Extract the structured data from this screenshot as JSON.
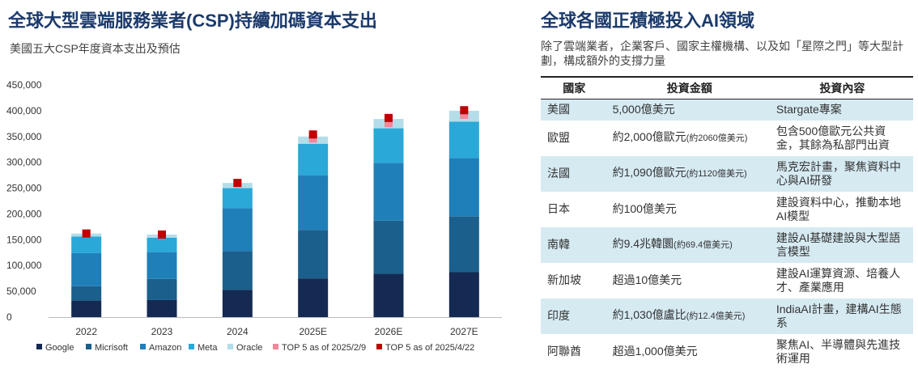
{
  "left": {
    "title": "全球大型雲端服務業者(CSP)持續加碼資本支出",
    "subtitle": "美國五大CSP年度資本支出及預估"
  },
  "right": {
    "title": "全球各國正積極投入AI領域",
    "description": "除了雲端業者，企業客戶、國家主權機構、以及如「星際之門」等大型計劃，構成額外的支撐力量",
    "headers": [
      "國家",
      "投資金額",
      "投資內容"
    ],
    "rows": [
      {
        "country": "美國",
        "amount": "5,000億美元",
        "note": "",
        "content": "Stargate專案"
      },
      {
        "country": "歐盟",
        "amount": "約2,000億歐元",
        "note": "(約2060億美元)",
        "content": "包含500億歐元公共資金，其餘為私部門出資"
      },
      {
        "country": "法國",
        "amount": "約1,090億歐元",
        "note": "(約1120億美元)",
        "content": "馬克宏計畫，聚焦資料中心與AI研發"
      },
      {
        "country": "日本",
        "amount": "約100億美元",
        "note": "",
        "content": "建設資料中心，推動本地AI模型"
      },
      {
        "country": "南韓",
        "amount": "約9.4兆韓圜",
        "note": "(約69.4億美元)",
        "content": "建設AI基礎建設與大型語言模型"
      },
      {
        "country": "新加坡",
        "amount": "超過10億美元",
        "note": "",
        "content": "建設AI運算資源、培養人才、產業應用"
      },
      {
        "country": "印度",
        "amount": "約1,030億盧比",
        "note": "(約12.4億美元)",
        "content": "IndiaAI計畫，建構AI生態系"
      },
      {
        "country": "阿聯酋",
        "amount": "超過1,000億美元",
        "note": "",
        "content": "聚焦AI、半導體與先進技術運用"
      }
    ]
  },
  "chart_data": {
    "type": "bar",
    "stacked": true,
    "categories": [
      "2022",
      "2023",
      "2024",
      "2025E",
      "2026E",
      "2027E"
    ],
    "ylim": [
      0,
      450000
    ],
    "yticks": [
      0,
      50000,
      100000,
      150000,
      200000,
      250000,
      300000,
      350000,
      400000,
      450000
    ],
    "ytick_labels": [
      "0",
      "50,000",
      "100,000",
      "150,000",
      "200,000",
      "250,000",
      "300,000",
      "350,000",
      "400,000",
      "450,000"
    ],
    "grid": false,
    "legend_position": "bottom",
    "series": [
      {
        "name": "Google",
        "color": "#142a52",
        "values": [
          32000,
          33000,
          53000,
          75000,
          84000,
          87000
        ]
      },
      {
        "name": "Micrisoft",
        "color": "#1b5f8c",
        "values": [
          28000,
          41000,
          75000,
          94000,
          103000,
          108000
        ]
      },
      {
        "name": "Amazon",
        "color": "#1f7fb8",
        "values": [
          64000,
          52000,
          83000,
          106000,
          112000,
          113000
        ]
      },
      {
        "name": "Meta",
        "color": "#2aa8d8",
        "values": [
          32000,
          28000,
          39000,
          61000,
          67000,
          71000
        ]
      },
      {
        "name": "Oracle",
        "color": "#b4dde9",
        "values": [
          6000,
          6000,
          10000,
          14000,
          18000,
          21000
        ]
      },
      {
        "name": "TOP 5 as of 2025/2/9",
        "type": "marker",
        "color": "#f2879a",
        "values": [
          162000,
          160000,
          260000,
          346000,
          376000,
          392000
        ]
      },
      {
        "name": "TOP 5 as of 2025/4/22",
        "type": "marker",
        "color": "#c00000",
        "values": [
          162000,
          160000,
          260000,
          354000,
          386000,
          401000
        ]
      }
    ]
  }
}
